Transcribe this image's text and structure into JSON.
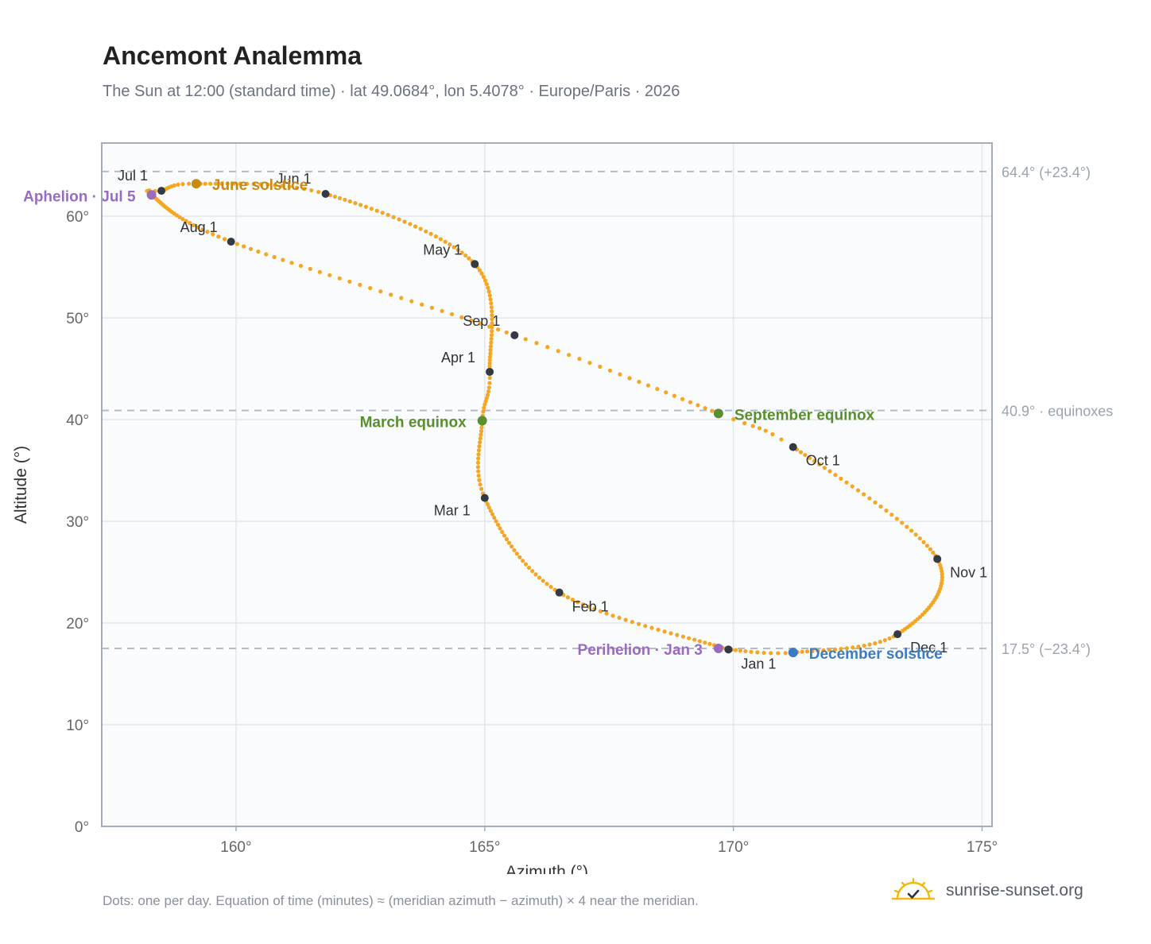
{
  "header": {
    "title": "Ancemont Analemma",
    "subtitle": "The Sun at 12:00 (standard time) · lat 49.0684°, lon 5.4078° · Europe/Paris · 2026"
  },
  "footer": {
    "note": "Dots: one per day. Equation of time (minutes) ≈ (meridian azimuth − azimuth) × 4 near the meridian.",
    "brand": "sunrise-sunset.org",
    "brand_icon": "sun-logo-icon"
  },
  "colors": {
    "path": "#f5a623",
    "month_marker": "#333a44",
    "equinox": "#5a8f2e",
    "june_solstice": "#c98a10",
    "december_solstice": "#3d7cc0",
    "apsis": "#9a6cbf",
    "reference": "#9aa3af",
    "plot_bg": "#f9fbfd",
    "grid": "#e3e8ee"
  },
  "chart_data": {
    "type": "scatter",
    "title": "Ancemont Analemma",
    "xlabel": "Azimuth (°)",
    "ylabel": "Altitude (°)",
    "xlim": [
      157.3,
      175.2
    ],
    "ylim": [
      0,
      67.2
    ],
    "xticks": [
      160,
      165,
      170,
      175
    ],
    "xtick_labels": [
      "160°",
      "165°",
      "170°",
      "175°"
    ],
    "yticks": [
      0,
      10,
      20,
      30,
      40,
      50,
      60
    ],
    "ytick_labels": [
      "0°",
      "10°",
      "20°",
      "30°",
      "40°",
      "50°",
      "60°"
    ],
    "grid": true,
    "reference_lines": [
      {
        "y": 64.4,
        "label": "64.4° (+23.4°)"
      },
      {
        "y": 40.9,
        "label": "40.9° · equinoxes"
      },
      {
        "y": 17.5,
        "label": "17.5° (−23.4°)"
      }
    ],
    "path_knots": [
      {
        "doy": 1,
        "az": 169.9,
        "alt": 17.4
      },
      {
        "doy": 32,
        "az": 166.5,
        "alt": 23.0
      },
      {
        "doy": 60,
        "az": 165.0,
        "alt": 32.3
      },
      {
        "doy": 79,
        "az": 164.95,
        "alt": 39.9
      },
      {
        "doy": 91,
        "az": 165.1,
        "alt": 44.7
      },
      {
        "doy": 121,
        "az": 164.8,
        "alt": 55.3
      },
      {
        "doy": 152,
        "az": 161.8,
        "alt": 62.2
      },
      {
        "doy": 172,
        "az": 159.2,
        "alt": 63.2
      },
      {
        "doy": 182,
        "az": 158.5,
        "alt": 62.5
      },
      {
        "doy": 186,
        "az": 158.3,
        "alt": 62.1
      },
      {
        "doy": 213,
        "az": 159.9,
        "alt": 57.5
      },
      {
        "doy": 244,
        "az": 165.6,
        "alt": 48.3
      },
      {
        "doy": 266,
        "az": 169.7,
        "alt": 40.6
      },
      {
        "doy": 274,
        "az": 171.2,
        "alt": 37.3
      },
      {
        "doy": 305,
        "az": 174.1,
        "alt": 26.3
      },
      {
        "doy": 335,
        "az": 173.3,
        "alt": 18.9
      },
      {
        "doy": 355,
        "az": 171.2,
        "alt": 17.1
      },
      {
        "doy": 366,
        "az": 169.9,
        "alt": 17.4
      }
    ],
    "month_markers": [
      {
        "label": "Jan 1",
        "az": 169.9,
        "alt": 17.4,
        "anchor": "start",
        "dx": 16,
        "dy": 24
      },
      {
        "label": "Feb 1",
        "az": 166.5,
        "alt": 23.0,
        "anchor": "start",
        "dx": 16,
        "dy": 24
      },
      {
        "label": "Mar 1",
        "az": 165.0,
        "alt": 32.3,
        "anchor": "end",
        "dx": -18,
        "dy": 22
      },
      {
        "label": "Apr 1",
        "az": 165.1,
        "alt": 44.7,
        "anchor": "end",
        "dx": -18,
        "dy": -12
      },
      {
        "label": "May 1",
        "az": 164.8,
        "alt": 55.3,
        "anchor": "end",
        "dx": -16,
        "dy": -12
      },
      {
        "label": "Jun 1",
        "az": 161.8,
        "alt": 62.2,
        "anchor": "end",
        "dx": -18,
        "dy": -13
      },
      {
        "label": "Jul 1",
        "az": 158.5,
        "alt": 62.5,
        "anchor": "end",
        "dx": -17,
        "dy": -13
      },
      {
        "label": "Aug 1",
        "az": 159.9,
        "alt": 57.5,
        "anchor": "end",
        "dx": -17,
        "dy": -12
      },
      {
        "label": "Sep 1",
        "az": 165.6,
        "alt": 48.3,
        "anchor": "end",
        "dx": -18,
        "dy": -12
      },
      {
        "label": "Oct 1",
        "az": 171.2,
        "alt": 37.3,
        "anchor": "start",
        "dx": 16,
        "dy": 23
      },
      {
        "label": "Nov 1",
        "az": 174.1,
        "alt": 26.3,
        "anchor": "start",
        "dx": 16,
        "dy": 23
      },
      {
        "label": "Dec 1",
        "az": 173.3,
        "alt": 18.9,
        "anchor": "start",
        "dx": 16,
        "dy": 23
      }
    ],
    "events": [
      {
        "label": "March equinox",
        "az": 164.95,
        "alt": 39.9,
        "color": "#5a8f2e",
        "anchor": "end",
        "dx": -20,
        "dy": 8
      },
      {
        "label": "June solstice",
        "az": 159.2,
        "alt": 63.2,
        "color": "#c98a10",
        "anchor": "start",
        "dx": 20,
        "dy": 8
      },
      {
        "label": "Aphelion · Jul 5",
        "az": 158.3,
        "alt": 62.1,
        "color": "#9a6cbf",
        "anchor": "end",
        "dx": -20,
        "dy": 8
      },
      {
        "label": "September equinox",
        "az": 169.7,
        "alt": 40.6,
        "color": "#5a8f2e",
        "anchor": "start",
        "dx": 20,
        "dy": 8
      },
      {
        "label": "December solstice",
        "az": 171.2,
        "alt": 17.1,
        "color": "#3d7cc0",
        "anchor": "start",
        "dx": 20,
        "dy": 8
      },
      {
        "label": "Perihelion · Jan 3",
        "az": 169.7,
        "alt": 17.5,
        "color": "#9a6cbf",
        "anchor": "end",
        "dx": -20,
        "dy": 8
      }
    ]
  }
}
